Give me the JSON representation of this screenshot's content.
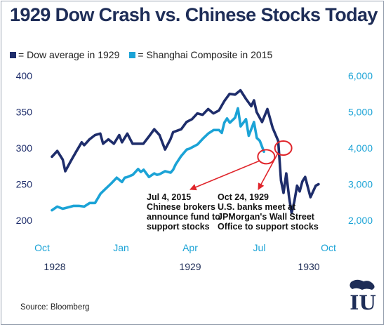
{
  "title": "1929 Dow Crash vs. Chinese Stocks Today",
  "legend": [
    {
      "label": "= Dow average in 1929",
      "color": "#1e2d6b"
    },
    {
      "label": "= Shanghai Composite in 2015",
      "color": "#1ba3d6"
    }
  ],
  "source": "Source: Bloomberg",
  "logo_text": "IU",
  "chart_data": {
    "type": "line",
    "xlim": [
      0,
      12
    ],
    "x_ticks": [
      {
        "x": 0,
        "month": "Oct",
        "year": "1928"
      },
      {
        "x": 3,
        "month": "Jan",
        "year": ""
      },
      {
        "x": 6,
        "month": "Apr",
        "year": "1929"
      },
      {
        "x": 9,
        "month": "Jul",
        "year": ""
      },
      {
        "x": 12,
        "month": "Oct",
        "year": "1930"
      }
    ],
    "y_left": {
      "lim": [
        200,
        400
      ],
      "ticks": [
        200,
        250,
        300,
        350,
        400
      ],
      "color": "#1e2d6b"
    },
    "y_right": {
      "lim": [
        2000,
        6000
      ],
      "ticks": [
        "2,000",
        "3,000",
        "4,000",
        "5,000",
        "6,000"
      ],
      "tick_values": [
        2000,
        3000,
        4000,
        5000,
        6000
      ],
      "color": "#1ba3d6"
    },
    "series": [
      {
        "name": "Dow average in 1929",
        "axis": "left",
        "color": "#1e2d6b",
        "x": [
          0,
          0.23,
          0.47,
          0.58,
          0.82,
          1.05,
          1.29,
          1.4,
          1.63,
          1.87,
          2.1,
          2.22,
          2.45,
          2.69,
          2.92,
          3.04,
          3.27,
          3.5,
          3.74,
          3.97,
          4.21,
          4.44,
          4.67,
          4.91,
          5.14,
          5.26,
          5.61,
          5.84,
          6.08,
          6.31,
          6.54,
          6.78,
          7.01,
          7.25,
          7.48,
          7.71,
          7.95,
          8.18,
          8.42,
          8.65,
          8.77,
          8.88,
          9.12,
          9.35,
          9.58,
          9.82,
          9.94,
          10.05,
          10.17,
          10.29,
          10.4,
          10.52,
          10.64,
          10.75,
          10.87,
          10.99,
          11.22,
          11.45,
          11.57
        ],
        "y": [
          288,
          296,
          284,
          268,
          282,
          295,
          308,
          304,
          312,
          318,
          320,
          306,
          312,
          306,
          318,
          308,
          320,
          306,
          306,
          306,
          316,
          326,
          318,
          298,
          312,
          322,
          326,
          336,
          340,
          348,
          346,
          354,
          348,
          352,
          365,
          375,
          374,
          380,
          368,
          358,
          366,
          350,
          336,
          354,
          328,
          310,
          255,
          238,
          265,
          232,
          210,
          226,
          248,
          240,
          254,
          260,
          232,
          248,
          250
        ]
      },
      {
        "name": "Shanghai Composite in 2015",
        "axis": "right",
        "color": "#1ba3d6",
        "x": [
          0,
          0.23,
          0.47,
          0.7,
          0.94,
          1.17,
          1.4,
          1.64,
          1.87,
          2.11,
          2.34,
          2.57,
          2.81,
          3.04,
          3.16,
          3.28,
          3.51,
          3.74,
          3.86,
          3.98,
          4.21,
          4.44,
          4.56,
          4.68,
          4.91,
          5.15,
          5.26,
          5.38,
          5.61,
          5.85,
          5.96,
          6.08,
          6.32,
          6.55,
          6.78,
          7.02,
          7.25,
          7.37,
          7.48,
          7.6,
          7.72,
          7.95,
          8.07,
          8.19,
          8.42,
          8.54,
          8.77,
          8.89,
          9.02,
          9.2
        ],
        "y": [
          2280,
          2380,
          2320,
          2360,
          2400,
          2400,
          2380,
          2480,
          2480,
          2740,
          2880,
          3020,
          3180,
          3060,
          3180,
          3200,
          3260,
          3420,
          3340,
          3400,
          3200,
          3300,
          3260,
          3280,
          3360,
          3320,
          3400,
          3560,
          3780,
          3960,
          3980,
          4020,
          4100,
          4260,
          4400,
          4500,
          4500,
          4420,
          4700,
          4820,
          4700,
          4840,
          5100,
          4600,
          4800,
          4340,
          4720,
          4280,
          4200,
          3900
        ]
      }
    ],
    "annotations": [
      {
        "text": "Jul 4, 2015\nChinese brokers\nannounce fund to\nsupport stocks",
        "target": {
          "x": 9.3,
          "y": 288
        }
      },
      {
        "text": "Oct 24, 1929\nU.S. banks meet at\nJPMorgan's Wall Street\nOffice to support stocks",
        "target": {
          "x": 10.04,
          "y": 300
        }
      }
    ],
    "grid": false
  }
}
